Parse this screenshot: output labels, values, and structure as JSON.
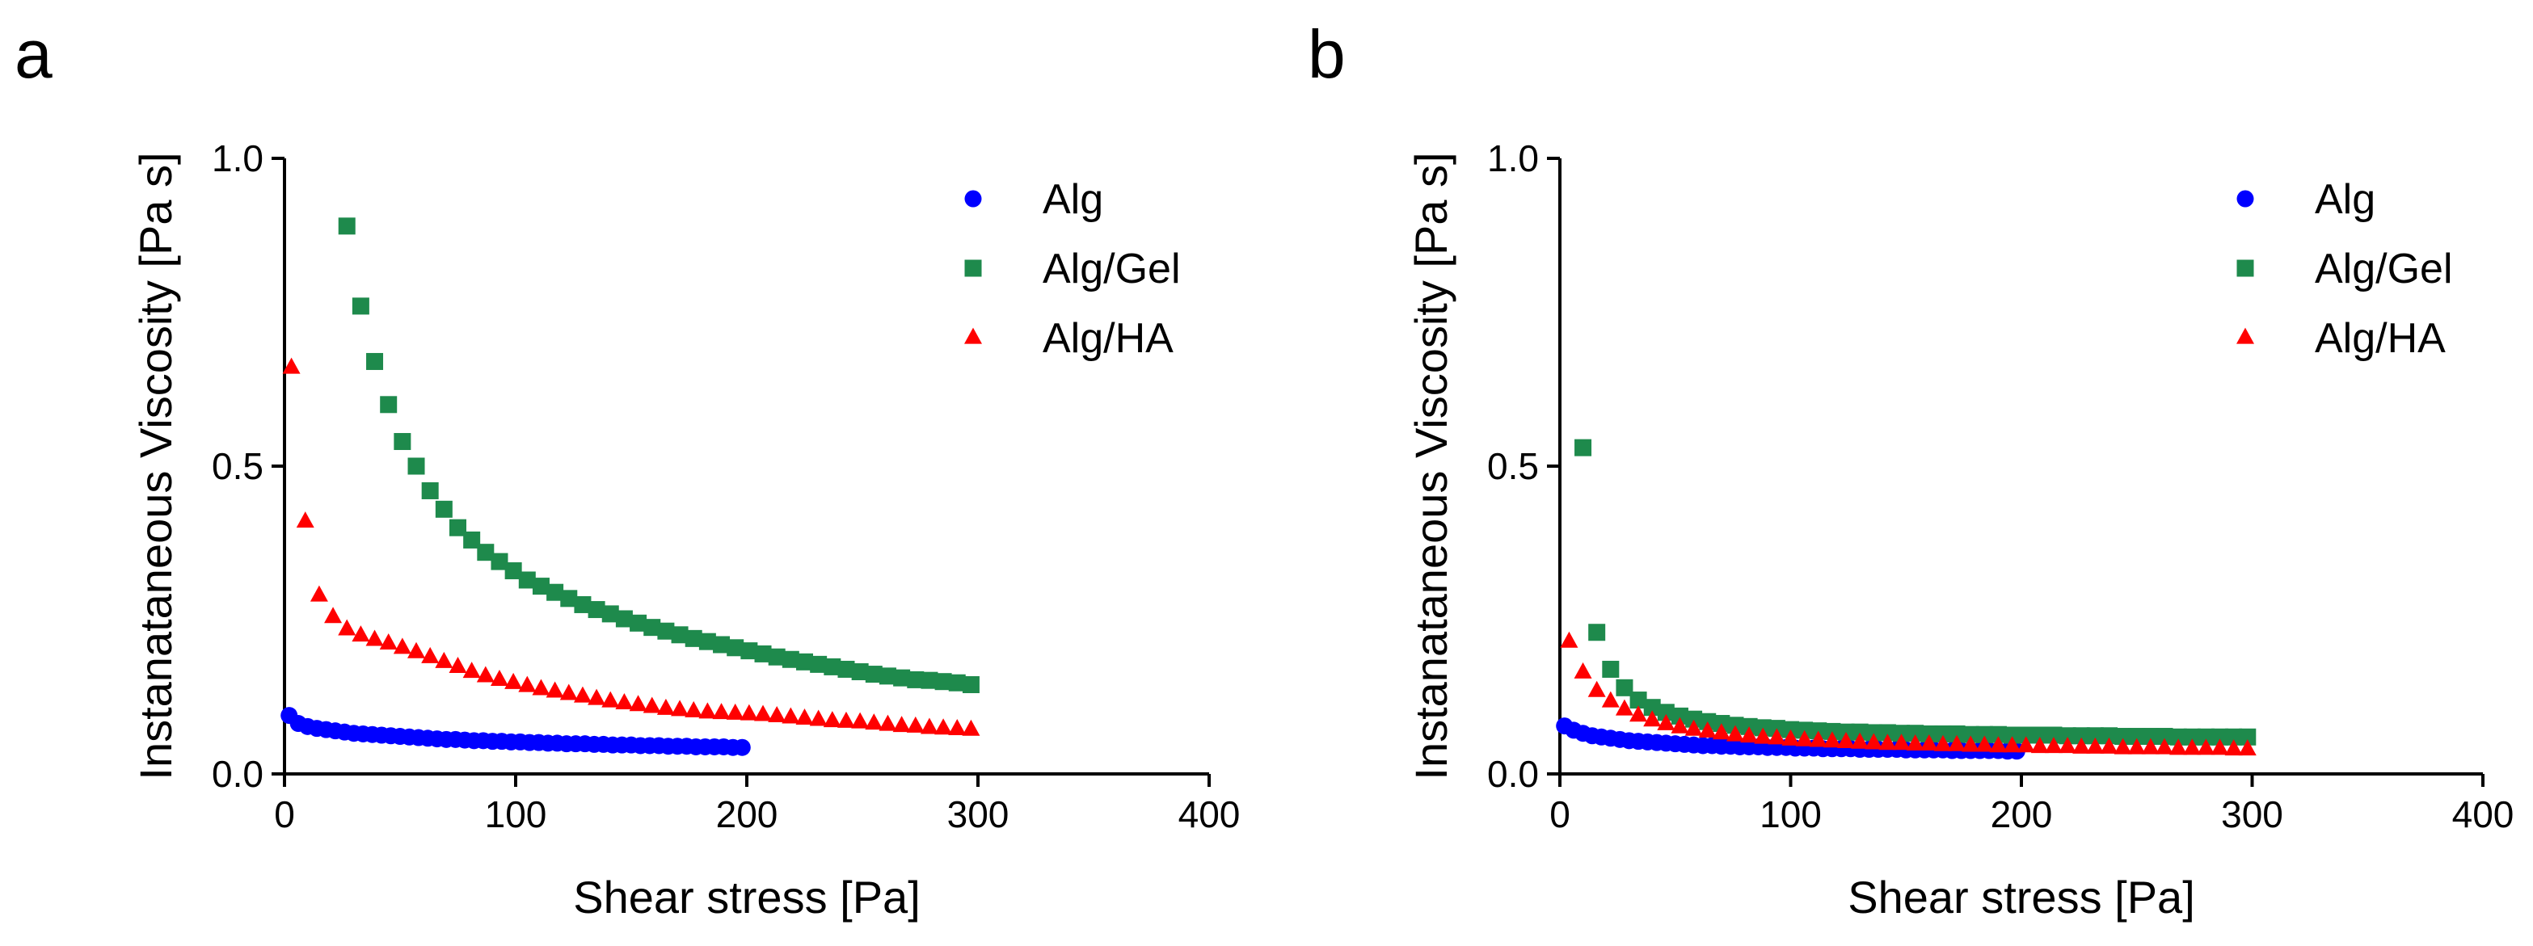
{
  "panels": [
    {
      "letter": "a"
    },
    {
      "letter": "b"
    }
  ],
  "chart_data": [
    {
      "type": "scatter",
      "panel": "a",
      "xlabel": "Shear stress [Pa]",
      "ylabel": "Instanataneous Viscosity [Pa s]",
      "xlim": [
        0,
        400
      ],
      "ylim": [
        0,
        1.0
      ],
      "xticks": [
        0,
        100,
        200,
        300,
        400
      ],
      "yticks": [
        0.0,
        0.5,
        1.0
      ],
      "xtick_labels": [
        "0",
        "100",
        "200",
        "300",
        "400"
      ],
      "ytick_labels": [
        "0.0",
        "0.5",
        "1.0"
      ],
      "legend_position": "top-right",
      "series": [
        {
          "name": "Alg",
          "marker": "circle",
          "color": "#0000ff",
          "x": [
            2,
            6,
            10,
            14,
            18,
            22,
            26,
            30,
            34,
            38,
            42,
            46,
            50,
            54,
            58,
            62,
            66,
            70,
            74,
            78,
            82,
            86,
            90,
            94,
            98,
            102,
            106,
            110,
            114,
            118,
            122,
            126,
            130,
            134,
            138,
            142,
            146,
            150,
            154,
            158,
            162,
            166,
            170,
            174,
            178,
            182,
            186,
            190,
            194,
            198
          ],
          "y": [
            0.095,
            0.082,
            0.077,
            0.074,
            0.072,
            0.07,
            0.068,
            0.066,
            0.065,
            0.064,
            0.063,
            0.062,
            0.061,
            0.06,
            0.059,
            0.058,
            0.057,
            0.056,
            0.056,
            0.055,
            0.054,
            0.054,
            0.053,
            0.053,
            0.052,
            0.052,
            0.051,
            0.051,
            0.05,
            0.05,
            0.049,
            0.049,
            0.049,
            0.048,
            0.048,
            0.047,
            0.047,
            0.047,
            0.046,
            0.046,
            0.046,
            0.045,
            0.045,
            0.045,
            0.044,
            0.044,
            0.044,
            0.044,
            0.043,
            0.043
          ]
        },
        {
          "name": "Alg/Gel",
          "marker": "square",
          "color": "#1e8a4c",
          "x": [
            27,
            33,
            39,
            45,
            51,
            57,
            63,
            69,
            75,
            81,
            87,
            93,
            99,
            105,
            111,
            117,
            123,
            129,
            135,
            141,
            147,
            153,
            159,
            165,
            171,
            177,
            183,
            189,
            195,
            201,
            207,
            213,
            219,
            225,
            231,
            237,
            243,
            249,
            255,
            261,
            267,
            273,
            279,
            285,
            291,
            297
          ],
          "y": [
            0.89,
            0.76,
            0.67,
            0.6,
            0.54,
            0.5,
            0.46,
            0.43,
            0.4,
            0.38,
            0.36,
            0.345,
            0.33,
            0.315,
            0.305,
            0.295,
            0.285,
            0.275,
            0.267,
            0.26,
            0.252,
            0.245,
            0.238,
            0.232,
            0.226,
            0.22,
            0.215,
            0.21,
            0.205,
            0.2,
            0.195,
            0.19,
            0.186,
            0.182,
            0.178,
            0.174,
            0.17,
            0.166,
            0.162,
            0.159,
            0.156,
            0.153,
            0.152,
            0.15,
            0.148,
            0.145
          ]
        },
        {
          "name": "Alg/HA",
          "marker": "triangle",
          "color": "#ff0000",
          "x": [
            3,
            9,
            15,
            21,
            27,
            33,
            39,
            45,
            51,
            57,
            63,
            69,
            75,
            81,
            87,
            93,
            99,
            105,
            111,
            117,
            123,
            129,
            135,
            141,
            147,
            153,
            159,
            165,
            171,
            177,
            183,
            189,
            195,
            201,
            207,
            213,
            219,
            225,
            231,
            237,
            243,
            249,
            255,
            261,
            267,
            273,
            279,
            285,
            291,
            297
          ],
          "y": [
            0.66,
            0.41,
            0.29,
            0.255,
            0.235,
            0.225,
            0.218,
            0.212,
            0.205,
            0.198,
            0.19,
            0.182,
            0.174,
            0.166,
            0.159,
            0.153,
            0.148,
            0.143,
            0.138,
            0.134,
            0.13,
            0.126,
            0.122,
            0.118,
            0.115,
            0.112,
            0.109,
            0.106,
            0.104,
            0.102,
            0.1,
            0.099,
            0.098,
            0.097,
            0.096,
            0.094,
            0.092,
            0.09,
            0.088,
            0.086,
            0.085,
            0.084,
            0.082,
            0.08,
            0.078,
            0.077,
            0.075,
            0.074,
            0.073,
            0.072
          ]
        }
      ]
    },
    {
      "type": "scatter",
      "panel": "b",
      "xlabel": "Shear stress [Pa]",
      "ylabel": "Instanataneous Viscosity [Pa s]",
      "xlim": [
        0,
        400
      ],
      "ylim": [
        0,
        1.0
      ],
      "xticks": [
        0,
        100,
        200,
        300,
        400
      ],
      "yticks": [
        0.0,
        0.5,
        1.0
      ],
      "xtick_labels": [
        "0",
        "100",
        "200",
        "300",
        "400"
      ],
      "ytick_labels": [
        "0.0",
        "0.5",
        "1.0"
      ],
      "legend_position": "top-right",
      "series": [
        {
          "name": "Alg",
          "marker": "circle",
          "color": "#0000ff",
          "x": [
            2,
            6,
            10,
            14,
            18,
            22,
            26,
            30,
            34,
            38,
            42,
            46,
            50,
            54,
            58,
            62,
            66,
            70,
            74,
            78,
            82,
            86,
            90,
            94,
            98,
            102,
            106,
            110,
            114,
            118,
            122,
            126,
            130,
            134,
            138,
            142,
            146,
            150,
            154,
            158,
            162,
            166,
            170,
            174,
            178,
            182,
            186,
            190,
            194,
            198
          ],
          "y": [
            0.078,
            0.071,
            0.066,
            0.062,
            0.06,
            0.058,
            0.056,
            0.054,
            0.053,
            0.052,
            0.051,
            0.05,
            0.049,
            0.048,
            0.047,
            0.046,
            0.046,
            0.045,
            0.045,
            0.044,
            0.044,
            0.044,
            0.043,
            0.043,
            0.043,
            0.042,
            0.042,
            0.042,
            0.041,
            0.041,
            0.041,
            0.041,
            0.04,
            0.04,
            0.04,
            0.04,
            0.04,
            0.039,
            0.039,
            0.039,
            0.039,
            0.039,
            0.038,
            0.038,
            0.038,
            0.038,
            0.038,
            0.038,
            0.037,
            0.037
          ]
        },
        {
          "name": "Alg/Gel",
          "marker": "square",
          "color": "#1e8a4c",
          "x": [
            10,
            16,
            22,
            28,
            34,
            40,
            46,
            52,
            58,
            64,
            70,
            76,
            82,
            88,
            94,
            100,
            106,
            112,
            118,
            124,
            130,
            136,
            142,
            148,
            154,
            160,
            166,
            172,
            178,
            184,
            190,
            196,
            202,
            208,
            214,
            220,
            226,
            232,
            238,
            244,
            250,
            256,
            262,
            268,
            274,
            280,
            286,
            292,
            298
          ],
          "y": [
            0.53,
            0.23,
            0.17,
            0.14,
            0.12,
            0.108,
            0.1,
            0.094,
            0.089,
            0.085,
            0.082,
            0.079,
            0.077,
            0.075,
            0.074,
            0.072,
            0.071,
            0.07,
            0.069,
            0.068,
            0.068,
            0.067,
            0.067,
            0.066,
            0.066,
            0.065,
            0.065,
            0.065,
            0.064,
            0.064,
            0.064,
            0.063,
            0.063,
            0.063,
            0.063,
            0.062,
            0.062,
            0.062,
            0.062,
            0.061,
            0.061,
            0.061,
            0.061,
            0.06,
            0.06,
            0.06,
            0.06,
            0.06,
            0.06
          ]
        },
        {
          "name": "Alg/HA",
          "marker": "triangle",
          "color": "#ff0000",
          "x": [
            4,
            10,
            16,
            22,
            28,
            34,
            40,
            46,
            52,
            58,
            64,
            70,
            76,
            82,
            88,
            94,
            100,
            106,
            112,
            118,
            124,
            130,
            136,
            142,
            148,
            154,
            160,
            166,
            172,
            178,
            184,
            190,
            196,
            202,
            208,
            214,
            220,
            226,
            232,
            238,
            244,
            250,
            256,
            262,
            268,
            274,
            280,
            286,
            292,
            298
          ],
          "y": [
            0.215,
            0.165,
            0.135,
            0.118,
            0.105,
            0.095,
            0.087,
            0.081,
            0.076,
            0.072,
            0.069,
            0.066,
            0.063,
            0.061,
            0.059,
            0.058,
            0.056,
            0.055,
            0.054,
            0.053,
            0.052,
            0.051,
            0.05,
            0.049,
            0.049,
            0.048,
            0.048,
            0.047,
            0.047,
            0.046,
            0.046,
            0.045,
            0.045,
            0.045,
            0.044,
            0.044,
            0.044,
            0.043,
            0.043,
            0.043,
            0.042,
            0.042,
            0.042,
            0.042,
            0.041,
            0.041,
            0.041,
            0.041,
            0.04,
            0.04
          ]
        }
      ]
    }
  ]
}
